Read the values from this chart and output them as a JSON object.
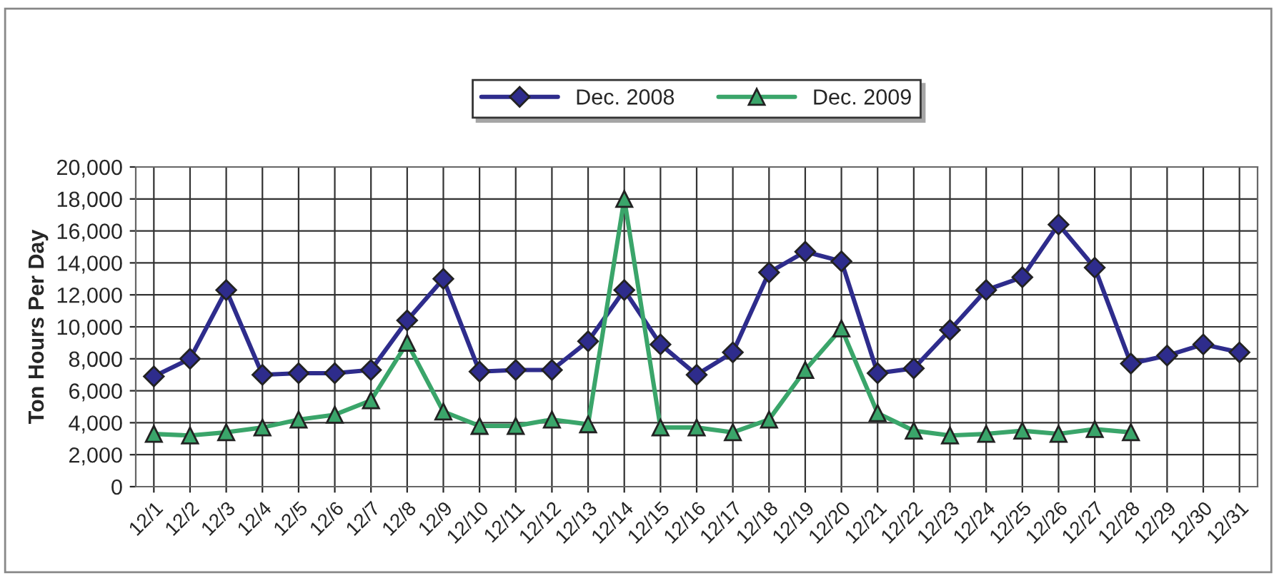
{
  "chart_data": {
    "type": "line",
    "ylabel": "Ton Hours Per Day",
    "categories": [
      "12/1",
      "12/2",
      "12/3",
      "12/4",
      "12/5",
      "12/6",
      "12/7",
      "12/8",
      "12/9",
      "12/10",
      "12/11",
      "12/12",
      "12/13",
      "12/14",
      "12/15",
      "12/16",
      "12/17",
      "12/18",
      "12/19",
      "12/20",
      "12/21",
      "12/22",
      "12/23",
      "12/24",
      "12/25",
      "12/26",
      "12/27",
      "12/28",
      "12/29",
      "12/30",
      "12/31"
    ],
    "series": [
      {
        "name": "Dec. 2008",
        "color": "#2e2c8c",
        "marker": "diamond",
        "values": [
          6900,
          8000,
          12300,
          7000,
          7100,
          7100,
          7300,
          10400,
          13000,
          7200,
          7300,
          7300,
          9100,
          12300,
          8900,
          7000,
          8400,
          13400,
          14700,
          14100,
          7100,
          7400,
          9800,
          12300,
          13100,
          16400,
          13700,
          7700,
          8200,
          8900,
          8400
        ]
      },
      {
        "name": "Dec. 2009",
        "color": "#3aa56a",
        "marker": "triangle",
        "values": [
          3300,
          3200,
          3400,
          3700,
          4200,
          4500,
          5400,
          9000,
          4700,
          3800,
          3800,
          4200,
          3900,
          18000,
          3700,
          3700,
          3400,
          4200,
          7300,
          9900,
          4600,
          3500,
          3200,
          3300,
          3500,
          3300,
          3600,
          3400,
          null,
          null,
          null
        ]
      }
    ],
    "ylim": [
      0,
      20000
    ],
    "yticks": [
      {
        "value": 0,
        "label": "0"
      },
      {
        "value": 2000,
        "label": "2,000"
      },
      {
        "value": 4000,
        "label": "4,000"
      },
      {
        "value": 6000,
        "label": "6,000"
      },
      {
        "value": 8000,
        "label": "8,000"
      },
      {
        "value": 10000,
        "label": "10,000"
      },
      {
        "value": 12000,
        "label": "12,000"
      },
      {
        "value": 14000,
        "label": "14,000"
      },
      {
        "value": 16000,
        "label": "16,000"
      },
      {
        "value": 18000,
        "label": "18,000"
      },
      {
        "value": 20000,
        "label": "20,000"
      }
    ],
    "grid": true,
    "legend": "top",
    "line_style": "solid"
  }
}
